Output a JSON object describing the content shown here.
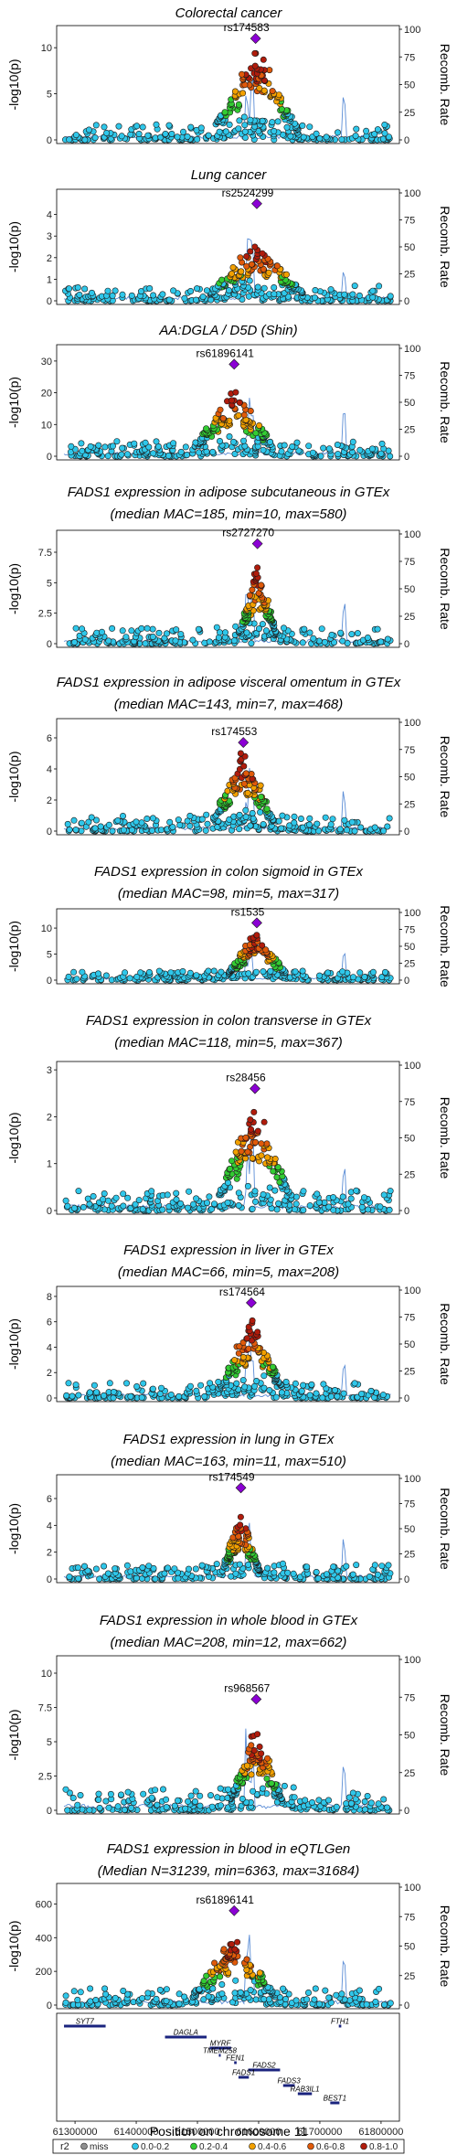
{
  "chart_data": {
    "type": "scatter",
    "y_axis_label": "-log10(p)",
    "y2_axis_label": "Recomb. Rate",
    "y2_ticks": [
      0,
      25,
      50,
      75,
      100
    ],
    "x_axis_label": "Position on chromosome 11",
    "x_ticks": [
      61300000,
      61400000,
      61500000,
      61600000,
      61700000,
      61800000
    ],
    "x_tick_labels": [
      "61300000",
      "61400000",
      "61500000",
      "61600000",
      "61700000",
      "61800000"
    ],
    "xlim": [
      61270000,
      61830000
    ],
    "lead_color": "#8b00d4",
    "r2_colors": [
      "#8f8f8f",
      "#2fc7ea",
      "#33cc33",
      "#f2a000",
      "#e05a0a",
      "#b01c0c"
    ],
    "legend": {
      "title": "r2",
      "items": [
        "miss",
        "0.0-0.2",
        "0.2-0.4",
        "0.4-0.6",
        "0.6-0.8",
        "0.8-1.0"
      ]
    },
    "panels": [
      {
        "title_lines": [
          "Colorectal cancer"
        ],
        "lead_snp": "rs174583",
        "lead_x": 61595000,
        "lead_y": 11,
        "ymax": 12,
        "y_ticks": [
          0,
          5,
          10
        ],
        "seed": 11
      },
      {
        "title_lines": [
          "Lung cancer"
        ],
        "lead_snp": "rs2524299",
        "lead_x": 61597000,
        "lead_y": 4.5,
        "ymax": 5,
        "y_ticks": [
          0,
          1,
          2,
          3,
          4
        ],
        "seed": 23
      },
      {
        "title_lines": [
          "AA:DGLA / D5D (Shin)"
        ],
        "lead_snp": "rs61896141",
        "lead_x": 61560000,
        "lead_y": 29,
        "ymax": 34,
        "y_ticks": [
          0,
          10,
          20,
          30
        ],
        "seed": 37
      },
      {
        "title_lines": [
          "FADS1 expression in adipose subcutaneous in GTEx",
          "(median MAC=185, min=10, max=580)"
        ],
        "lead_snp": "rs2727270",
        "lead_x": 61598000,
        "lead_y": 8.2,
        "ymax": 9,
        "y_ticks": [
          0,
          2.5,
          5,
          7.5
        ],
        "seed": 41
      },
      {
        "title_lines": [
          "FADS1 expression in adipose visceral omentum in GTEx",
          "(median MAC=143, min=7, max=468)"
        ],
        "lead_snp": "rs174553",
        "lead_x": 61575000,
        "lead_y": 5.7,
        "ymax": 7,
        "y_ticks": [
          0,
          2,
          4,
          6
        ],
        "seed": 53
      },
      {
        "title_lines": [
          "FADS1 expression in colon sigmoid in GTEx",
          "(median MAC=98, min=5, max=317)"
        ],
        "lead_snp": "rs1535",
        "lead_x": 61597000,
        "lead_y": 11,
        "ymax": 13,
        "y_ticks": [
          0,
          5,
          10
        ],
        "seed": 61
      },
      {
        "title_lines": [
          "FADS1 expression in colon transverse in GTEx",
          "(median MAC=118, min=5, max=367)"
        ],
        "lead_snp": "rs28456",
        "lead_x": 61594000,
        "lead_y": 2.6,
        "ymax": 3.1,
        "y_ticks": [
          0,
          1,
          2,
          3
        ],
        "seed": 73
      },
      {
        "title_lines": [
          "FADS1 expression in liver in GTEx",
          "(median MAC=66, min=5, max=208)"
        ],
        "lead_snp": "rs174564",
        "lead_x": 61588000,
        "lead_y": 7.5,
        "ymax": 8.5,
        "y_ticks": [
          0,
          2,
          4,
          6,
          8
        ],
        "seed": 83
      },
      {
        "title_lines": [
          "FADS1 expression in lung in GTEx",
          "(median MAC=163, min=11, max=510)"
        ],
        "lead_snp": "rs174549",
        "lead_x": 61571000,
        "lead_y": 6.8,
        "ymax": 7.5,
        "y_ticks": [
          0,
          2,
          4,
          6
        ],
        "seed": 97
      },
      {
        "title_lines": [
          "FADS1 expression in whole blood in GTEx",
          "(median MAC=208, min=12, max=662)"
        ],
        "lead_snp": "rs968567",
        "lead_x": 61596000,
        "lead_y": 8.1,
        "ymax": 11,
        "y_ticks": [
          0,
          2.5,
          5,
          7.5,
          10
        ],
        "seed": 101
      },
      {
        "title_lines": [
          "FADS1 expression in blood in eQTLGen",
          "(Median N=31239, min=6363, max=31684)"
        ],
        "lead_snp": "rs61896141",
        "lead_x": 61560000,
        "lead_y": 560,
        "ymax": 700,
        "y_ticks": [
          0,
          200,
          400,
          600
        ],
        "seed": 113
      }
    ],
    "genes": [
      {
        "name": "SYT7",
        "start": 61282000,
        "end": 61350000,
        "row": 0
      },
      {
        "name": "FTH1",
        "start": 61731000,
        "end": 61735000,
        "row": 0
      },
      {
        "name": "DAGLA",
        "start": 61447000,
        "end": 61515000,
        "row": 1
      },
      {
        "name": "MYRF",
        "start": 61520000,
        "end": 61555000,
        "row": 2
      },
      {
        "name": "TMEM258",
        "start": 61535000,
        "end": 61538000,
        "row": 3
      },
      {
        "name": "FEN1",
        "start": 61560000,
        "end": 61564000,
        "row": 4
      },
      {
        "name": "FADS2",
        "start": 61583000,
        "end": 61635000,
        "row": 5
      },
      {
        "name": "FADS1",
        "start": 61567000,
        "end": 61584000,
        "row": 6
      },
      {
        "name": "FADS3",
        "start": 61640000,
        "end": 61659000,
        "row": 7
      },
      {
        "name": "RAB3IL1",
        "start": 61664000,
        "end": 61687000,
        "row": 8
      },
      {
        "name": "BEST1",
        "start": 61717000,
        "end": 61732000,
        "row": 9
      }
    ]
  }
}
